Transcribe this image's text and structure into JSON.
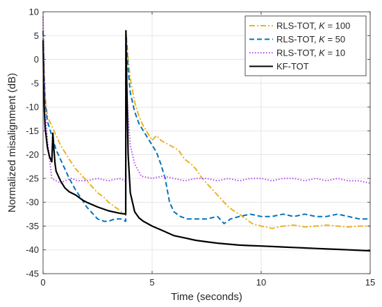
{
  "chart_data": {
    "type": "line",
    "title": "",
    "xlabel": "Time (seconds)",
    "ylabel": "Normalized misalignment (dB)",
    "xlim": [
      0,
      15
    ],
    "ylim": [
      -45,
      10
    ],
    "xticks": [
      0,
      5,
      10,
      15
    ],
    "yticks": [
      -45,
      -40,
      -35,
      -30,
      -25,
      -20,
      -15,
      -10,
      -5,
      0,
      5,
      10
    ],
    "grid": true,
    "legend_position": "top-right",
    "series": [
      {
        "name": "RLS-TOT, K = 100",
        "legend_parts": [
          "RLS-TOT, ",
          "K",
          " = 100"
        ],
        "color": "#EDB120",
        "line_style": "dashdot",
        "x": [
          0,
          0.05,
          0.1,
          0.2,
          0.4,
          0.6,
          0.8,
          1.0,
          1.2,
          1.5,
          1.8,
          2.0,
          2.2,
          2.5,
          2.8,
          3.0,
          3.3,
          3.6,
          3.79,
          3.8,
          3.9,
          4.0,
          4.2,
          4.4,
          4.6,
          4.8,
          5.0,
          5.2,
          5.4,
          5.6,
          5.8,
          6.0,
          6.2,
          6.5,
          6.8,
          7.0,
          7.3,
          7.6,
          7.9,
          8.2,
          8.5,
          8.8,
          9.0,
          9.3,
          9.6,
          10.0,
          10.5,
          11.0,
          11.5,
          12.0,
          12.5,
          13.0,
          13.5,
          14.0,
          14.5,
          15.0
        ],
        "y": [
          6,
          -3,
          -8,
          -12,
          -14,
          -16,
          -18,
          -19.5,
          -21,
          -23,
          -24.5,
          -25.5,
          -26.5,
          -28,
          -29,
          -30,
          -31,
          -32,
          -32.5,
          6,
          0,
          -4,
          -9,
          -12,
          -14,
          -15.5,
          -17,
          -16,
          -17,
          -17.5,
          -18,
          -18.5,
          -19,
          -21,
          -22,
          -23,
          -25,
          -26.5,
          -28,
          -29.5,
          -31,
          -32,
          -32.5,
          -33.5,
          -34.5,
          -35,
          -35.5,
          -35,
          -34.8,
          -35.2,
          -35,
          -34.8,
          -35,
          -35.2,
          -35,
          -35
        ]
      },
      {
        "name": "RLS-TOT, K = 50",
        "legend_parts": [
          "RLS-TOT, ",
          "K",
          " = 50"
        ],
        "color": "#0072BD",
        "line_style": "dashed",
        "x": [
          0,
          0.05,
          0.1,
          0.2,
          0.4,
          0.6,
          0.8,
          1.0,
          1.2,
          1.5,
          1.8,
          2.0,
          2.2,
          2.5,
          2.8,
          3.0,
          3.3,
          3.6,
          3.79,
          3.8,
          3.9,
          4.0,
          4.2,
          4.4,
          4.6,
          4.8,
          5.0,
          5.2,
          5.4,
          5.6,
          5.8,
          6.0,
          6.3,
          6.6,
          7.0,
          7.5,
          8.0,
          8.3,
          8.6,
          9.0,
          9.5,
          10.0,
          10.5,
          11.0,
          11.5,
          12.0,
          12.5,
          13.0,
          13.5,
          14.0,
          14.5,
          15.0
        ],
        "y": [
          6,
          -4,
          -9,
          -13,
          -16,
          -19,
          -21,
          -23,
          -25,
          -27.5,
          -29.5,
          -31,
          -32,
          -33.5,
          -34,
          -34,
          -33.5,
          -33.5,
          -34,
          6,
          -2,
          -7,
          -11,
          -13.5,
          -15,
          -16.5,
          -18,
          -19.5,
          -22,
          -25,
          -30,
          -32,
          -33,
          -33.5,
          -33.5,
          -33.5,
          -33,
          -34.5,
          -33.5,
          -33,
          -32.5,
          -33,
          -33,
          -32.5,
          -33,
          -32.5,
          -33,
          -33,
          -32.5,
          -33,
          -33.5,
          -33.5
        ]
      },
      {
        "name": "RLS-TOT, K = 10",
        "legend_parts": [
          "RLS-TOT, ",
          "K",
          " = 10"
        ],
        "color": "#B347F0",
        "line_style": "dotted",
        "x": [
          0,
          0.05,
          0.1,
          0.2,
          0.3,
          0.4,
          0.6,
          0.8,
          1.0,
          1.3,
          1.6,
          2.0,
          2.5,
          3.0,
          3.5,
          3.79,
          3.8,
          3.9,
          4.0,
          4.2,
          4.5,
          5.0,
          5.5,
          6.0,
          6.5,
          7.0,
          7.5,
          8.0,
          8.5,
          9.0,
          9.5,
          10.0,
          10.5,
          11.0,
          11.5,
          12.0,
          12.5,
          13.0,
          13.5,
          14.0,
          14.5,
          15.0
        ],
        "y": [
          9,
          -3,
          -10,
          -17,
          -21,
          -25,
          -25.5,
          -26,
          -25.5,
          -25,
          -25.5,
          -25.5,
          -25,
          -25.5,
          -25,
          -25.5,
          -3,
          -12,
          -18,
          -22,
          -24.5,
          -25,
          -24.5,
          -25,
          -25.5,
          -25,
          -25,
          -25.5,
          -25,
          -25.5,
          -25,
          -25,
          -25.5,
          -25,
          -25,
          -25.5,
          -25,
          -25.5,
          -25,
          -25.5,
          -25.5,
          -26
        ]
      },
      {
        "name": "KF-TOT",
        "legend_parts": [
          "KF-TOT",
          "",
          ""
        ],
        "color": "#000000",
        "line_style": "solid",
        "x": [
          0,
          0.03,
          0.06,
          0.1,
          0.15,
          0.2,
          0.3,
          0.4,
          0.45,
          0.5,
          0.55,
          0.6,
          0.8,
          1.0,
          1.2,
          1.5,
          1.8,
          2.0,
          2.5,
          3.0,
          3.5,
          3.79,
          3.8,
          3.82,
          3.9,
          4.0,
          4.2,
          4.4,
          4.6,
          4.8,
          5.0,
          5.5,
          6.0,
          6.5,
          7.0,
          7.5,
          8.0,
          8.5,
          9.0,
          9.5,
          10.0,
          10.5,
          11.0,
          11.5,
          12.0,
          12.5,
          13.0,
          13.5,
          14.0,
          14.5,
          15.0
        ],
        "y": [
          4,
          -6,
          -11,
          -14.5,
          -16.5,
          -18.5,
          -20.5,
          -21.5,
          -15.5,
          -19,
          -22,
          -23.5,
          -25.5,
          -27,
          -27.8,
          -28.5,
          -29.5,
          -30,
          -31,
          -31.8,
          -32.3,
          -32.5,
          6,
          0,
          -20,
          -28,
          -32,
          -33.3,
          -34,
          -34.5,
          -35,
          -36,
          -37,
          -37.5,
          -38,
          -38.3,
          -38.6,
          -38.8,
          -39,
          -39.1,
          -39.2,
          -39.3,
          -39.4,
          -39.5,
          -39.6,
          -39.7,
          -39.8,
          -39.9,
          -40,
          -40.1,
          -40.2
        ]
      }
    ]
  }
}
